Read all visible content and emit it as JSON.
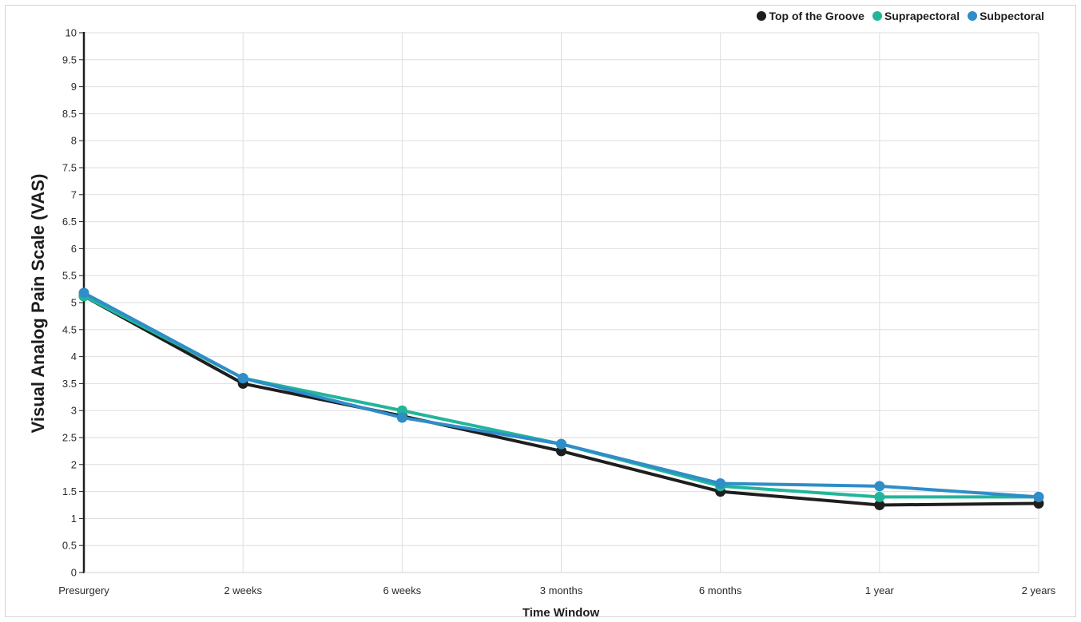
{
  "chart_data": {
    "type": "line",
    "xlabel": "Time Window",
    "ylabel": "Visual Analog Pain Scale (VAS)",
    "categories": [
      "Presurgery",
      "2 weeks",
      "6 weeks",
      "3 months",
      "6 months",
      "1 year",
      "2 years"
    ],
    "ylim": [
      0,
      10
    ],
    "yticks": [
      "0",
      "0.5",
      "1",
      "1.5",
      "2",
      "2.5",
      "3",
      "3.5",
      "4",
      "4.5",
      "5",
      "5.5",
      "6",
      "6.5",
      "7",
      "7.5",
      "8",
      "8.5",
      "9",
      "9.5",
      "10"
    ],
    "grid": true,
    "legend_position": "top-right",
    "series": [
      {
        "name": "Top of the Groove",
        "color": "#1e1e1e",
        "values": [
          5.12,
          3.5,
          2.9,
          2.25,
          1.5,
          1.25,
          1.28
        ]
      },
      {
        "name": "Suprapectoral",
        "color": "#22b59a",
        "values": [
          5.12,
          3.6,
          3.0,
          2.38,
          1.6,
          1.4,
          1.4
        ]
      },
      {
        "name": "Subpectoral",
        "color": "#2f8dc8",
        "values": [
          5.18,
          3.6,
          2.87,
          2.38,
          1.65,
          1.6,
          1.4
        ]
      }
    ]
  }
}
